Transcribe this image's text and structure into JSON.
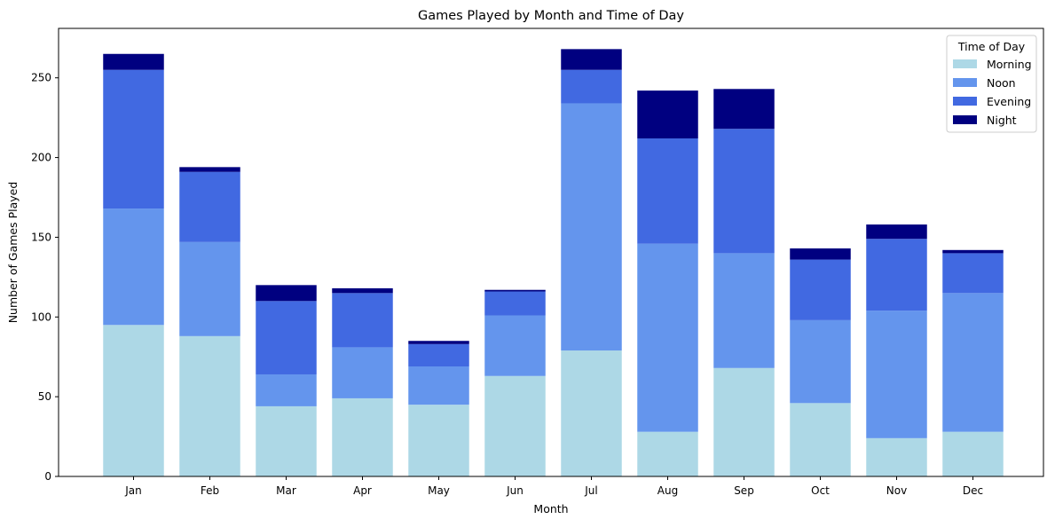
{
  "chart_data": {
    "type": "bar",
    "stacked": true,
    "title": "Games Played by Month and Time of Day",
    "xlabel": "Month",
    "ylabel": "Number of Games Played",
    "categories": [
      "Jan",
      "Feb",
      "Mar",
      "Apr",
      "May",
      "Jun",
      "Jul",
      "Aug",
      "Sep",
      "Oct",
      "Nov",
      "Dec"
    ],
    "ylim": [
      0,
      281
    ],
    "yticks": [
      0,
      50,
      100,
      150,
      200,
      250
    ],
    "grid": false,
    "legend": {
      "title": "Time of Day",
      "placement": "top-right"
    },
    "series": [
      {
        "name": "Morning",
        "color": "#add8e6",
        "values": [
          95,
          88,
          44,
          49,
          45,
          63,
          79,
          28,
          68,
          46,
          24,
          28
        ]
      },
      {
        "name": "Noon",
        "color": "#6495ed",
        "values": [
          73,
          59,
          20,
          32,
          24,
          38,
          155,
          118,
          72,
          52,
          80,
          87
        ]
      },
      {
        "name": "Evening",
        "color": "#4169e1",
        "values": [
          87,
          44,
          46,
          34,
          14,
          15,
          21,
          66,
          78,
          38,
          45,
          25
        ]
      },
      {
        "name": "Night",
        "color": "#000080",
        "values": [
          10,
          3,
          10,
          3,
          2,
          1,
          13,
          30,
          25,
          7,
          9,
          2
        ]
      }
    ]
  }
}
